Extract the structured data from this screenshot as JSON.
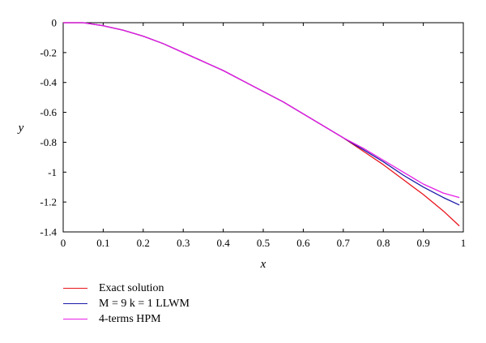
{
  "chart_data": {
    "type": "line",
    "xlabel": "x",
    "ylabel": "y",
    "xlim": [
      0,
      1
    ],
    "ylim": [
      -1.4,
      0
    ],
    "x_ticks": [
      "0",
      "0.1",
      "0.2",
      "0.3",
      "0.4",
      "0.5",
      "0.6",
      "0.7",
      "0.8",
      "0.9",
      "1"
    ],
    "y_ticks": [
      "0",
      "-0.2",
      "-0.4",
      "-0.6",
      "-0.8",
      "-1",
      "-1.2",
      "-1.4"
    ],
    "grid": false,
    "legend_position": "bottom-left, below plot",
    "x": [
      0,
      0.05,
      0.1,
      0.15,
      0.2,
      0.25,
      0.3,
      0.35,
      0.4,
      0.45,
      0.5,
      0.55,
      0.6,
      0.65,
      0.7,
      0.75,
      0.8,
      0.85,
      0.9,
      0.95,
      0.99
    ],
    "series": [
      {
        "name": "Exact solution",
        "color": "#e8141c",
        "values": [
          0,
          0,
          -0.02,
          -0.05,
          -0.09,
          -0.14,
          -0.2,
          -0.26,
          -0.32,
          -0.39,
          -0.46,
          -0.53,
          -0.61,
          -0.69,
          -0.77,
          -0.86,
          -0.95,
          -1.05,
          -1.15,
          -1.26,
          -1.36
        ]
      },
      {
        "name": "M = 9 k = 1 LLWM",
        "color": "#1a1aa8",
        "values": [
          0,
          0,
          -0.02,
          -0.05,
          -0.09,
          -0.14,
          -0.2,
          -0.26,
          -0.32,
          -0.39,
          -0.46,
          -0.53,
          -0.61,
          -0.69,
          -0.77,
          -0.85,
          -0.93,
          -1.02,
          -1.1,
          -1.17,
          -1.22
        ]
      },
      {
        "name": "4-terms HPM",
        "color": "#e61ee6",
        "values": [
          0,
          0,
          -0.02,
          -0.05,
          -0.09,
          -0.14,
          -0.2,
          -0.26,
          -0.32,
          -0.39,
          -0.46,
          -0.53,
          -0.61,
          -0.69,
          -0.77,
          -0.84,
          -0.92,
          -1.0,
          -1.08,
          -1.14,
          -1.17
        ]
      }
    ]
  }
}
